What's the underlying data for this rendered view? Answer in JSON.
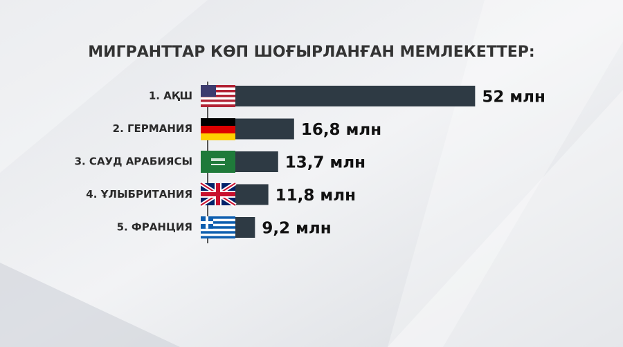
{
  "chart_data": {
    "type": "bar",
    "orientation": "horizontal",
    "title": "МИГРАНТТАР КӨП ШОҒЫРЛАНҒАН МЕМЛЕКЕТТЕР:",
    "categories": [
      "1. АҚШ",
      "2. ГЕРМАНИЯ",
      "3. САУД АРАБИЯСЫ",
      "4. ҰЛЫБРИТАНИЯ",
      "5. ФРАНЦИЯ"
    ],
    "values": [
      52,
      16.8,
      13.7,
      11.8,
      9.2
    ],
    "value_labels": [
      "52 млн",
      "16,8 млн",
      "13,7 млн",
      "11,8 млн",
      "9,2 млн"
    ],
    "color": "#2e3a44"
  }
}
